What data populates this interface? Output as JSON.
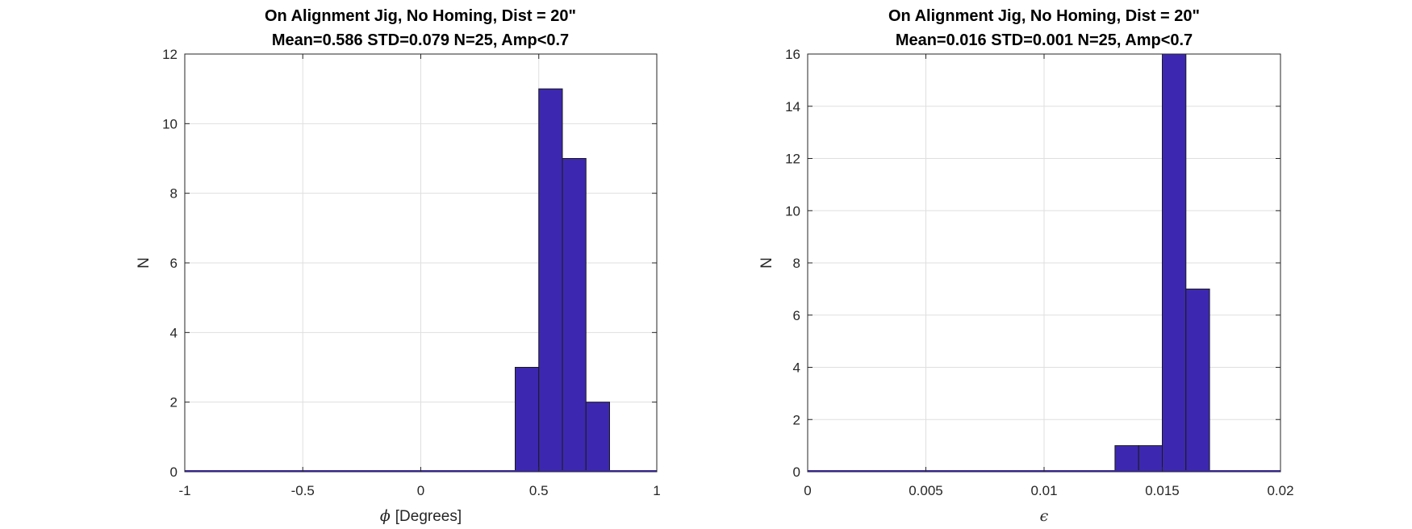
{
  "chart_data": [
    {
      "type": "bar",
      "subtype": "histogram",
      "title": "On Alignment Jig, No Homing, Dist = 20\"",
      "subtitle": "Mean=0.586 STD=0.079 N=25, Amp<0.7",
      "xlabel_symbol": "ϕ",
      "xlabel_text": "[Degrees]",
      "ylabel": "N",
      "xlim": [
        -1,
        1
      ],
      "ylim": [
        0,
        12
      ],
      "xticks": [
        -1,
        -0.5,
        0,
        0.5,
        1
      ],
      "xtick_labels": [
        "-1",
        "-0.5",
        "0",
        "0.5",
        "1"
      ],
      "yticks": [
        0,
        2,
        4,
        6,
        8,
        10,
        12
      ],
      "ytick_labels": [
        "0",
        "2",
        "4",
        "6",
        "8",
        "10",
        "12"
      ],
      "grid": true,
      "bar_color": "#3c28b0",
      "bins": [
        {
          "x0": 0.4,
          "x1": 0.5,
          "count": 3
        },
        {
          "x0": 0.5,
          "x1": 0.6,
          "count": 11
        },
        {
          "x0": 0.6,
          "x1": 0.7,
          "count": 9
        },
        {
          "x0": 0.7,
          "x1": 0.8,
          "count": 2
        }
      ]
    },
    {
      "type": "bar",
      "subtype": "histogram",
      "title": "On Alignment Jig, No Homing, Dist = 20\"",
      "subtitle": "Mean=0.016 STD=0.001 N=25, Amp<0.7",
      "xlabel_symbol": "ϵ",
      "xlabel_text": "",
      "ylabel": "N",
      "xlim": [
        0,
        0.02
      ],
      "ylim": [
        0,
        16
      ],
      "xticks": [
        0,
        0.005,
        0.01,
        0.015,
        0.02
      ],
      "xtick_labels": [
        "0",
        "0.005",
        "0.01",
        "0.015",
        "0.02"
      ],
      "yticks": [
        0,
        2,
        4,
        6,
        8,
        10,
        12,
        14,
        16
      ],
      "ytick_labels": [
        "0",
        "2",
        "4",
        "6",
        "8",
        "10",
        "12",
        "14",
        "16"
      ],
      "grid": true,
      "bar_color": "#3c28b0",
      "bins": [
        {
          "x0": 0.013,
          "x1": 0.014,
          "count": 1
        },
        {
          "x0": 0.014,
          "x1": 0.015,
          "count": 1
        },
        {
          "x0": 0.015,
          "x1": 0.016,
          "count": 16
        },
        {
          "x0": 0.016,
          "x1": 0.017,
          "count": 7
        }
      ]
    }
  ]
}
